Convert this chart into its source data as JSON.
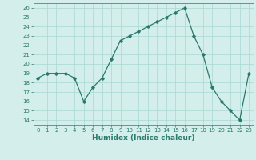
{
  "x": [
    0,
    1,
    2,
    3,
    4,
    5,
    6,
    7,
    8,
    9,
    10,
    11,
    12,
    13,
    14,
    15,
    16,
    17,
    18,
    19,
    20,
    21,
    22,
    23
  ],
  "y": [
    18.5,
    19.0,
    19.0,
    19.0,
    18.5,
    16.0,
    17.5,
    18.5,
    20.5,
    22.5,
    23.0,
    23.5,
    24.0,
    24.5,
    25.0,
    25.5,
    26.0,
    23.0,
    21.0,
    17.5,
    16.0,
    15.0,
    14.0,
    19.0
  ],
  "line_color": "#2a7a6a",
  "marker": "D",
  "markersize": 1.8,
  "linewidth": 0.9,
  "xlabel": "Humidex (Indice chaleur)",
  "ylim": [
    13.5,
    26.5
  ],
  "xlim": [
    -0.5,
    23.5
  ],
  "yticks": [
    14,
    15,
    16,
    17,
    18,
    19,
    20,
    21,
    22,
    23,
    24,
    25,
    26
  ],
  "xticks": [
    0,
    1,
    2,
    3,
    4,
    5,
    6,
    7,
    8,
    9,
    10,
    11,
    12,
    13,
    14,
    15,
    16,
    17,
    18,
    19,
    20,
    21,
    22,
    23
  ],
  "bg_color": "#d4eeec",
  "grid_color": "#a8d8d4",
  "xlabel_fontsize": 6.5,
  "tick_fontsize": 5.0
}
